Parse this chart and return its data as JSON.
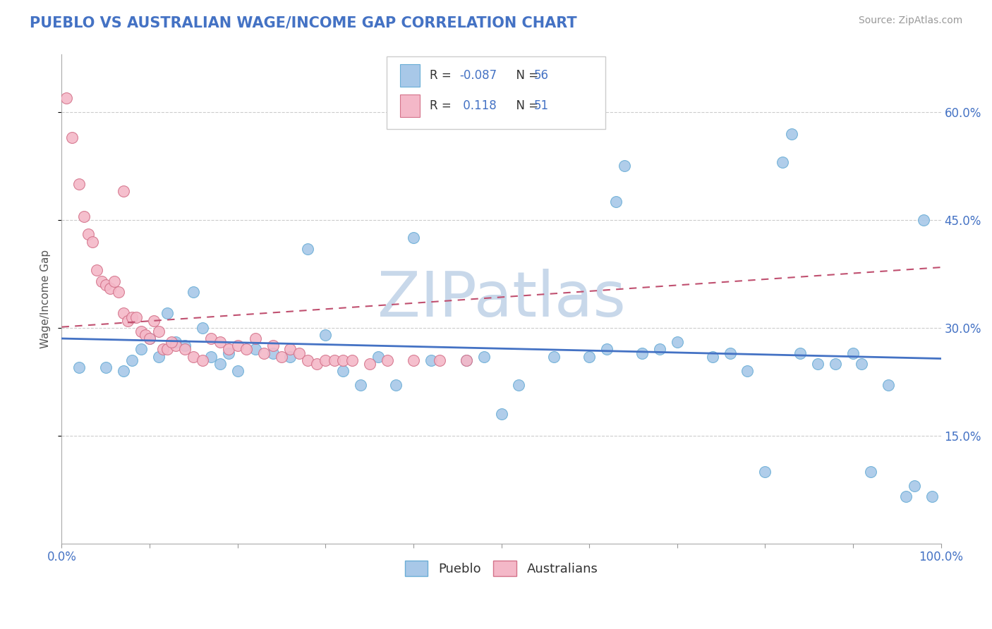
{
  "title": "PUEBLO VS AUSTRALIAN WAGE/INCOME GAP CORRELATION CHART",
  "source": "Source: ZipAtlas.com",
  "ylabel": "Wage/Income Gap",
  "xlim": [
    0,
    1
  ],
  "ylim": [
    0,
    0.68
  ],
  "xticks": [
    0.0,
    0.1,
    0.2,
    0.3,
    0.4,
    0.5,
    0.6,
    0.7,
    0.8,
    0.9,
    1.0
  ],
  "xticklabels": [
    "0.0%",
    "",
    "",
    "",
    "",
    "",
    "",
    "",
    "",
    "",
    "100.0%"
  ],
  "yticks": [
    0.15,
    0.3,
    0.45,
    0.6
  ],
  "yticklabels": [
    "15.0%",
    "30.0%",
    "45.0%",
    "60.0%"
  ],
  "r_pueblo": -0.087,
  "r_australians": 0.118,
  "n_pueblo": 56,
  "n_australians": 51,
  "pueblo_color": "#a8c8e8",
  "australians_color": "#f4b8c8",
  "pueblo_edge_color": "#6baed6",
  "australians_edge_color": "#d4728a",
  "pueblo_line_color": "#4472c4",
  "australians_line_color": "#c05070",
  "title_color": "#4472c4",
  "tick_color": "#4472c4",
  "watermark": "ZIPatlas",
  "watermark_color": "#c8d8ea",
  "background_color": "#ffffff",
  "grid_color": "#cccccc",
  "pueblo_x": [
    0.02,
    0.05,
    0.07,
    0.08,
    0.09,
    0.1,
    0.11,
    0.12,
    0.13,
    0.14,
    0.15,
    0.16,
    0.17,
    0.18,
    0.19,
    0.2,
    0.22,
    0.24,
    0.28,
    0.3,
    0.32,
    0.36,
    0.4,
    0.46,
    0.5,
    0.52,
    0.6,
    0.62,
    0.63,
    0.64,
    0.66,
    0.68,
    0.7,
    0.74,
    0.76,
    0.78,
    0.8,
    0.82,
    0.83,
    0.84,
    0.86,
    0.88,
    0.9,
    0.91,
    0.92,
    0.94,
    0.96,
    0.97,
    0.98,
    0.99,
    0.38,
    0.42,
    0.48,
    0.56,
    0.34,
    0.26
  ],
  "pueblo_y": [
    0.245,
    0.245,
    0.24,
    0.255,
    0.27,
    0.285,
    0.26,
    0.32,
    0.28,
    0.275,
    0.35,
    0.3,
    0.26,
    0.25,
    0.265,
    0.24,
    0.27,
    0.265,
    0.41,
    0.29,
    0.24,
    0.26,
    0.425,
    0.255,
    0.18,
    0.22,
    0.26,
    0.27,
    0.475,
    0.525,
    0.265,
    0.27,
    0.28,
    0.26,
    0.265,
    0.24,
    0.1,
    0.53,
    0.57,
    0.265,
    0.25,
    0.25,
    0.265,
    0.25,
    0.1,
    0.22,
    0.065,
    0.08,
    0.45,
    0.065,
    0.22,
    0.255,
    0.26,
    0.26,
    0.22,
    0.26
  ],
  "australians_x": [
    0.005,
    0.012,
    0.02,
    0.025,
    0.03,
    0.035,
    0.04,
    0.045,
    0.05,
    0.055,
    0.06,
    0.065,
    0.07,
    0.075,
    0.08,
    0.085,
    0.09,
    0.095,
    0.1,
    0.105,
    0.11,
    0.115,
    0.12,
    0.13,
    0.14,
    0.15,
    0.16,
    0.17,
    0.18,
    0.19,
    0.2,
    0.21,
    0.22,
    0.23,
    0.24,
    0.25,
    0.26,
    0.27,
    0.28,
    0.29,
    0.3,
    0.31,
    0.32,
    0.33,
    0.35,
    0.37,
    0.4,
    0.43,
    0.46,
    0.07,
    0.125
  ],
  "australians_y": [
    0.62,
    0.565,
    0.5,
    0.455,
    0.43,
    0.42,
    0.38,
    0.365,
    0.36,
    0.355,
    0.365,
    0.35,
    0.32,
    0.31,
    0.315,
    0.315,
    0.295,
    0.29,
    0.285,
    0.31,
    0.295,
    0.27,
    0.27,
    0.275,
    0.27,
    0.26,
    0.255,
    0.285,
    0.28,
    0.27,
    0.275,
    0.27,
    0.285,
    0.265,
    0.275,
    0.26,
    0.27,
    0.265,
    0.255,
    0.25,
    0.255,
    0.255,
    0.255,
    0.255,
    0.25,
    0.255,
    0.255,
    0.255,
    0.255,
    0.49,
    0.28
  ]
}
